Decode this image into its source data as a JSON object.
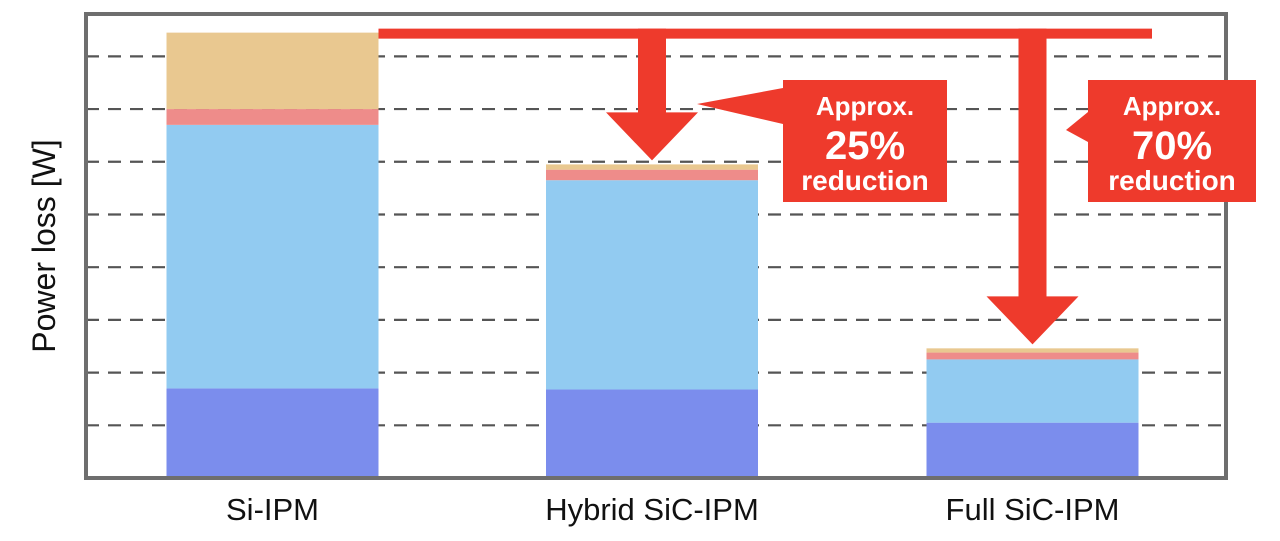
{
  "colors": {
    "bg": "#ffffff",
    "plot_border": "#6e6e6e",
    "grid": "#555555",
    "arrow": "#ee3a2c"
  },
  "chart_data": {
    "type": "bar",
    "stacked": true,
    "title": "",
    "xlabel": "",
    "ylabel": "Power loss [W]",
    "ylim": [
      0,
      8.5
    ],
    "grid": {
      "y": true,
      "style": "dashed",
      "lines": [
        1,
        2,
        3,
        4,
        5,
        6,
        7,
        8
      ]
    },
    "y_tick_labels": false,
    "categories": [
      "Si-IPM",
      "Hybrid SiC-IPM",
      "Full SiC-IPM"
    ],
    "series": [
      {
        "color": "#7b8ded",
        "values": [
          1.7,
          1.68,
          1.05
        ]
      },
      {
        "color": "#92cbf1",
        "values": [
          5.0,
          3.97,
          1.2
        ]
      },
      {
        "color": "#ee8c8a",
        "values": [
          0.3,
          0.2,
          0.13
        ]
      },
      {
        "color": "#e9c890",
        "values": [
          1.45,
          0.1,
          0.08
        ]
      }
    ],
    "annotations": [
      {
        "from": 0,
        "to": 1,
        "lines": [
          "Approx.",
          "25%",
          "reduction"
        ]
      },
      {
        "from": 0,
        "to": 2,
        "lines": [
          "Approx.",
          "70%",
          "reduction"
        ]
      }
    ]
  }
}
